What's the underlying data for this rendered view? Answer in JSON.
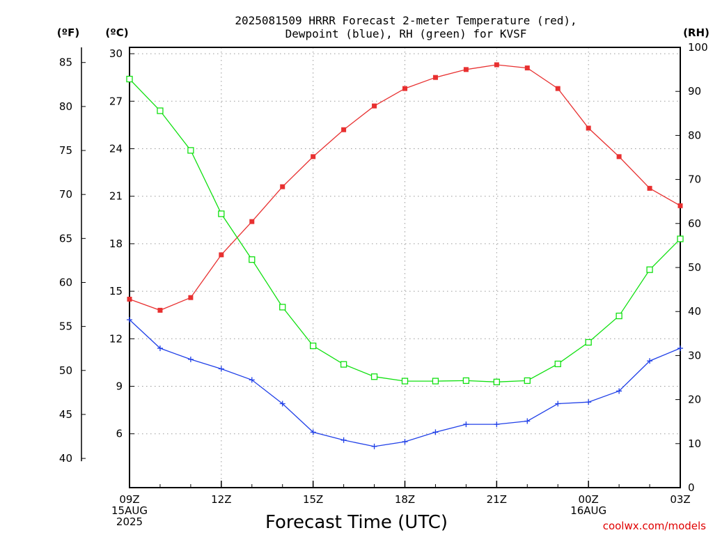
{
  "chart_data": {
    "type": "line",
    "title_line1": "2025081509 HRRR Forecast 2-meter Temperature (red),",
    "title_line2": "Dewpoint (blue), RH (green) for KVSF",
    "xlabel": "Forecast Time (UTC)",
    "credit": "coolwx.com/models",
    "unit_f": "(ºF)",
    "unit_c": "(ºC)",
    "unit_rh": "(RH)",
    "x_hours": [
      0,
      1,
      2,
      3,
      4,
      5,
      6,
      7,
      8,
      9,
      10,
      11,
      12,
      13,
      14,
      15,
      16,
      17,
      18
    ],
    "x_ticks": [
      {
        "hour": 0,
        "lines": [
          "09Z",
          "15AUG",
          "2025"
        ]
      },
      {
        "hour": 3,
        "lines": [
          "12Z"
        ]
      },
      {
        "hour": 6,
        "lines": [
          "15Z"
        ]
      },
      {
        "hour": 9,
        "lines": [
          "18Z"
        ]
      },
      {
        "hour": 12,
        "lines": [
          "21Z"
        ]
      },
      {
        "hour": 15,
        "lines": [
          "00Z",
          "16AUG"
        ]
      },
      {
        "hour": 18,
        "lines": [
          "03Z"
        ]
      }
    ],
    "y_celsius": {
      "range": [
        2.6,
        30.4
      ],
      "ticks": [
        6,
        9,
        12,
        15,
        18,
        21,
        24,
        27,
        30
      ]
    },
    "y_fahrenheit": {
      "ticks": [
        40,
        45,
        50,
        55,
        60,
        65,
        70,
        75,
        80,
        85
      ]
    },
    "y_rh": {
      "range": [
        0,
        100
      ],
      "ticks": [
        0,
        10,
        20,
        30,
        40,
        50,
        60,
        70,
        80,
        90,
        100
      ]
    },
    "grid": true,
    "series": [
      {
        "name": "Temperature (red)",
        "axis": "C",
        "color": "#e83030",
        "marker": "filled-square",
        "values": [
          14.5,
          13.8,
          14.6,
          17.3,
          19.4,
          21.6,
          23.5,
          25.2,
          26.7,
          27.8,
          28.5,
          29.0,
          29.3,
          29.1,
          27.8,
          25.3,
          23.5,
          21.5,
          20.4
        ]
      },
      {
        "name": "Dewpoint (blue)",
        "axis": "C",
        "color": "#2040e8",
        "marker": "plus",
        "values": [
          13.2,
          11.4,
          10.7,
          10.1,
          9.4,
          7.9,
          6.1,
          5.6,
          5.2,
          5.5,
          6.1,
          6.6,
          6.6,
          6.8,
          7.9,
          8.0,
          8.7,
          10.6,
          11.4
        ]
      },
      {
        "name": "RH (green)",
        "axis": "RH",
        "color": "#10e010",
        "marker": "open-square",
        "values": [
          92.8,
          85.6,
          76.6,
          62.2,
          51.8,
          41.0,
          32.2,
          28.0,
          25.2,
          24.2,
          24.2,
          24.3,
          24.0,
          24.3,
          28.1,
          33.0,
          39.0,
          49.5,
          56.5
        ]
      }
    ]
  }
}
